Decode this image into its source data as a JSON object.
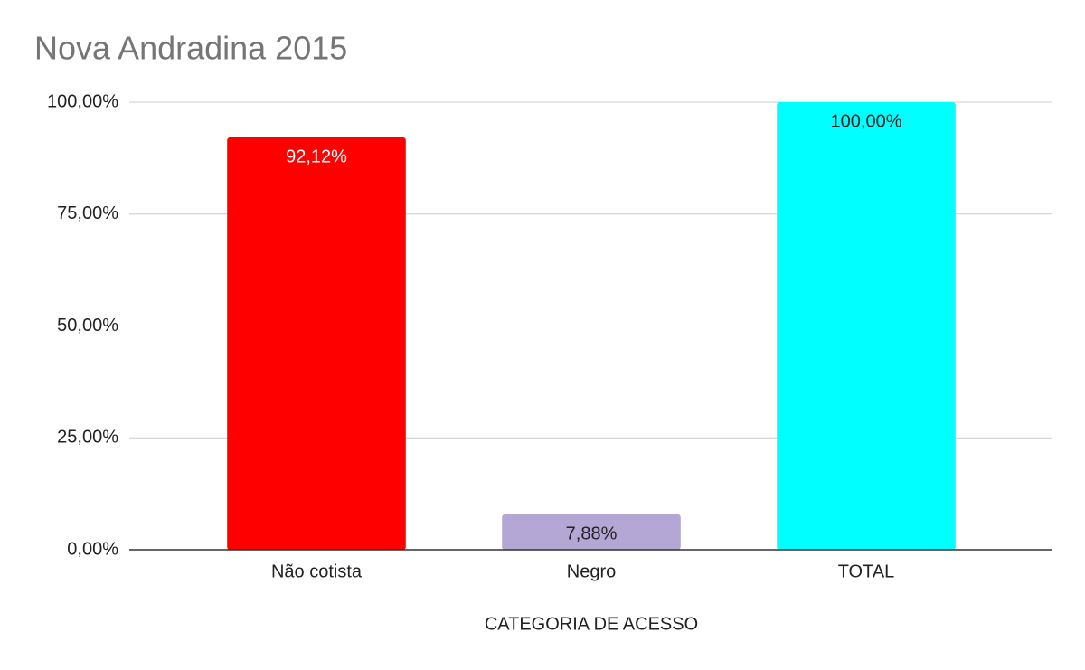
{
  "chart_data": {
    "type": "bar",
    "title": "Nova Andradina 2015",
    "x_label": "CATEGORIA DE ACESSO",
    "categories": [
      "Não cotista",
      "Negro",
      "TOTAL"
    ],
    "values": [
      92.12,
      7.88,
      100
    ],
    "value_labels": [
      "92,12%",
      "7,88%",
      "100,00%"
    ],
    "colors": [
      "#ff0000",
      "#b4a7d6",
      "#00ffff"
    ],
    "ylim": [
      0,
      100
    ],
    "yticks": [
      {
        "value": 0,
        "label": "0,00%"
      },
      {
        "value": 25,
        "label": "25,00%"
      },
      {
        "value": 50,
        "label": "50,00%"
      },
      {
        "value": 75,
        "label": "75,00%"
      },
      {
        "value": 100,
        "label": "100,00%"
      }
    ],
    "grid": true
  }
}
